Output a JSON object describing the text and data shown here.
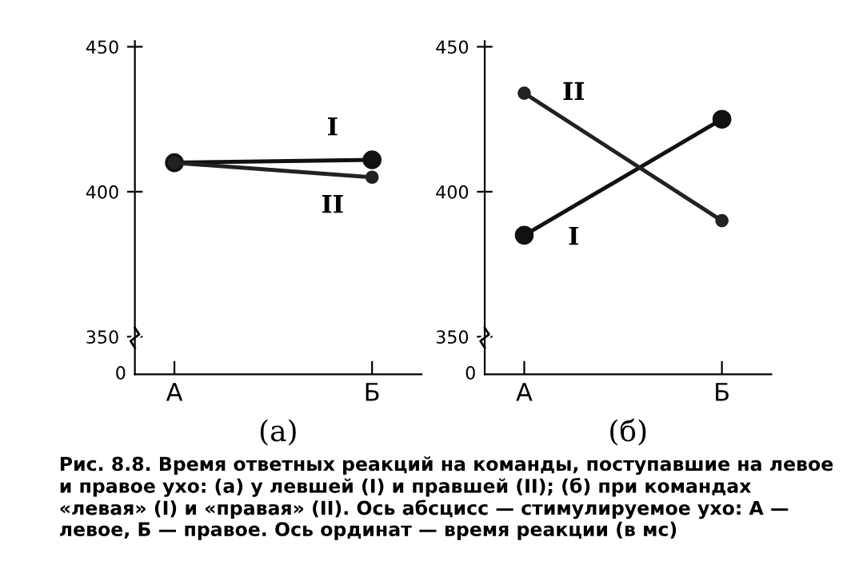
{
  "chart_data": [
    {
      "type": "line",
      "xlabel": "(а)",
      "categories": [
        "А",
        "Б"
      ],
      "series": [
        {
          "name": "I",
          "color": "#111111",
          "values": [
            410,
            411
          ]
        },
        {
          "name": "II",
          "color": "#222222",
          "values": [
            410,
            405
          ]
        }
      ],
      "ylim": [
        337,
        452
      ],
      "yticks": [
        350,
        400,
        450
      ],
      "marker": "circle",
      "line_style": "solid",
      "grid": false,
      "legend": false,
      "annotations": [
        "0",
        "Рис. 8.8. Время ответных реакций на команды, поступавшие на левое и правое ухо: (а) у левшей (I) и правшей (II); (б) при командах «левая» (I) и «правая» (II). Ось абсцисс — стимулируемое ухо: А — левое, Б — правое. Ось ординат — время реакции (в мс)"
      ]
    },
    {
      "type": "line",
      "xlabel": "(б)",
      "categories": [
        "А",
        "Б"
      ],
      "series": [
        {
          "name": "I",
          "color": "#111111",
          "values": [
            385,
            425
          ]
        },
        {
          "name": "II",
          "color": "#222222",
          "values": [
            434,
            390
          ]
        }
      ],
      "ylim": [
        337,
        452
      ],
      "yticks": [
        350,
        400,
        450
      ],
      "marker": "circle",
      "line_style": "solid",
      "grid": false,
      "legend": false,
      "annotations": [
        "0"
      ]
    }
  ]
}
